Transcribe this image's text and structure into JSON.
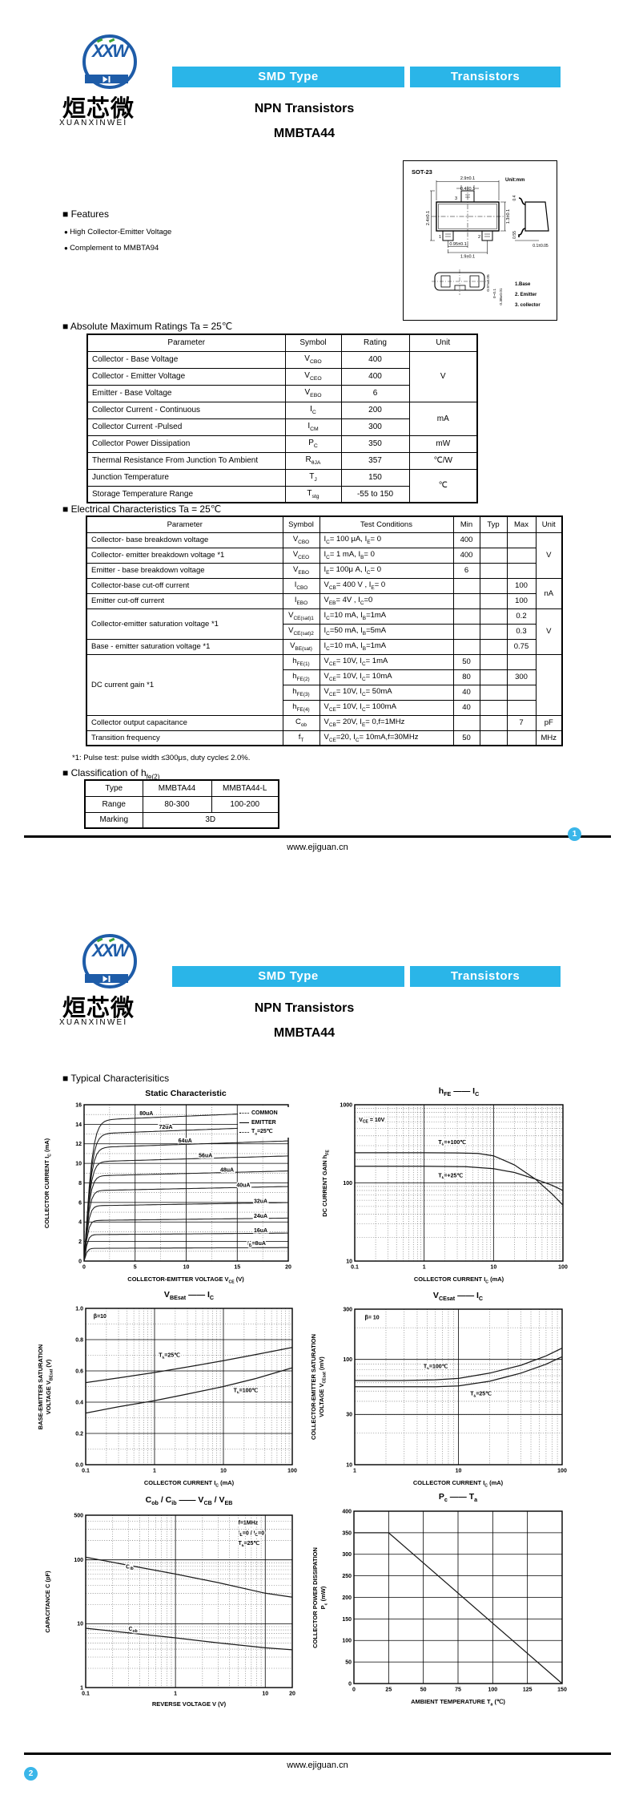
{
  "brand": {
    "monogram": "XXW",
    "cn": "烜芯微",
    "en": "XUANXINWEI"
  },
  "banner": {
    "left": "SMD Type",
    "right": "Transistors"
  },
  "title": {
    "line1": "NPN  Transistors",
    "line2": "MMBTA44"
  },
  "package": {
    "name": "SOT-23",
    "unit": "Unit:mm",
    "dims": [
      "2.9±0.1",
      "0.4±0.1",
      "2.4±0.1",
      "1.3±0.1",
      "0.95±0.1",
      "1.9±0.1",
      "0.4",
      "0.55",
      "0.1±0.05",
      "0.97±0.05",
      "0~0.1",
      "0.38±0.01"
    ],
    "pin_numbers": [
      "1",
      "2",
      "3"
    ],
    "pins": [
      "1.Base",
      "2. Emitter",
      "3. collector"
    ]
  },
  "features": {
    "heading": "Features",
    "items": [
      "High Collector-Emitter Voltage",
      "Complement to MMBTA94"
    ]
  },
  "abs_max": {
    "heading": "Absolute Maximum Ratings Ta = 25℃",
    "columns": [
      "Parameter",
      "Symbol",
      "Rating",
      "Unit"
    ],
    "rows": [
      {
        "p": "Collector - Base Voltage",
        "s": "V|CBO|",
        "r": "400",
        "u": "V",
        "us": 3
      },
      {
        "p": "Collector - Emitter Voltage",
        "s": "V|CEO|",
        "r": "400"
      },
      {
        "p": "Emitter - Base Voltage",
        "s": "V|EBO|",
        "r": "6"
      },
      {
        "p": "Collector Current  - Continuous",
        "s": "I|C|",
        "r": "200",
        "u": "mA",
        "us": 2
      },
      {
        "p": "Collector Current -Pulsed",
        "s": "I|CM|",
        "r": "300"
      },
      {
        "p": "Collector Power Dissipation",
        "s": "P|C|",
        "r": "350",
        "u": "mW",
        "us": 1
      },
      {
        "p": "Thermal Resistance From Junction To Ambient",
        "s": "R|θJA|",
        "r": "357",
        "u": "℃/W",
        "us": 1
      },
      {
        "p": "Junction Temperature",
        "s": "T|J|",
        "r": "150",
        "u": "℃",
        "us": 2
      },
      {
        "p": "Storage Temperature Range",
        "s": "T|stg|",
        "r": "-55 to 150"
      }
    ]
  },
  "electrical": {
    "heading": "Electrical Characteristics Ta = 25℃",
    "columns": [
      "Parameter",
      "Symbol",
      "Test Conditions",
      "Min",
      "Typ",
      "Max",
      "Unit"
    ],
    "rows": [
      {
        "p": "Collector- base breakdown voltage",
        "s": "V|CBO|",
        "c": "I|C|= 100 μA,   I|E|= 0",
        "min": "400",
        "u": "V",
        "us": 3
      },
      {
        "p": "Collector- emitter breakdown voltage    *1",
        "s": "V|CEO|",
        "c": "I|C|= 1 mA,   I|B|= 0",
        "min": "400"
      },
      {
        "p": "Emitter - base breakdown voltage",
        "s": "V|EBO|",
        "c": "I|E|= 100μ A,   I|C|= 0",
        "min": "6"
      },
      {
        "p": "Collector-base cut-off current",
        "s": "I|CBO|",
        "c": "V|CB|= 400 V , I|E|= 0",
        "max": "100",
        "u": "nA",
        "us": 2
      },
      {
        "p": "Emitter cut-off current",
        "s": "I|EBO|",
        "c": "V|EB|= 4V , I|C|=0",
        "max": "100"
      },
      {
        "p": "Collector-emitter saturation voltage  *1",
        "ps": 2,
        "s": "V|CE(sat)1|",
        "c": "I|C|=10 mA, I|B|=1mA",
        "max": "0.2",
        "u": "V",
        "us": 3
      },
      {
        "s": "V|CE(sat)2|",
        "c": "I|C|=50 mA, I|B|=5mA",
        "max": "0.3"
      },
      {
        "p": "Base - emitter saturation voltage   *1",
        "s": "V|BE(sat)|",
        "c": "I|C|=10 mA, I|B|=1mA",
        "max": "0.75"
      },
      {
        "p": "DC current gain   *1",
        "ps": 4,
        "s": "h|FE(1)|",
        "c": "V|CE|= 10V, I|C|= 1mA",
        "min": "50",
        "u": "",
        "us": 4
      },
      {
        "s": "h|FE(2)|",
        "c": "V|CE|= 10V, I|C|= 10mA",
        "min": "80",
        "max": "300"
      },
      {
        "s": "h|FE(3)|",
        "c": "V|CE|= 10V, I|C|= 50mA",
        "min": "40"
      },
      {
        "s": "h|FE(4)|",
        "c": "V|CE|= 10V, I|C|= 100mA",
        "min": "40"
      },
      {
        "p": "Collector output  capacitance",
        "s": "C|ob|",
        "c": "V|CB|= 20V, I|E|= 0,f=1MHz",
        "max": "7",
        "u": "pF",
        "us": 1
      },
      {
        "p": "Transition frequency",
        "s": "f|T|",
        "c": "V|CE|=20, I|C|= 10mA,f=30MHz",
        "min": "50",
        "u": "MHz",
        "us": 1
      }
    ]
  },
  "footnote": "*1: Pulse test: pulse width ≤300μs, duty cycle≤ 2.0%.",
  "classification": {
    "heading": "Classification of h|fe(2)|",
    "rows": [
      [
        "Type",
        "MMBTA44",
        "MMBTA44-L"
      ],
      [
        "Range",
        "80-300",
        "100-200"
      ],
      [
        "Marking",
        "3D"
      ]
    ]
  },
  "footer": {
    "url": "www.ejiguan.cn",
    "page1": "1",
    "page2": "2"
  },
  "page2_heading": "Typical  Characterisitics",
  "chart_data": [
    {
      "type": "line",
      "title": "Static Characteristic",
      "xlabel": "COLLECTOR-EMITTER VOLTAGE   V|CE|   (V)",
      "ylabel": "COLLECTOR CURRENT   I|C|   (mA)",
      "x": {
        "log": false,
        "min": 0,
        "max": 20,
        "ticks": [
          "0",
          "5",
          "10",
          "15",
          "20"
        ]
      },
      "y": {
        "log": false,
        "min": 0,
        "max": 16,
        "ticks": [
          "0",
          "2",
          "4",
          "6",
          "8",
          "10",
          "12",
          "14",
          "16"
        ]
      },
      "legend": [
        "COMMON",
        "EMITTER",
        "T|a|=25℃"
      ],
      "curves": [
        {
          "l": "80uA",
          "s": 14.4,
          "x": 6.1,
          "y": 15.1
        },
        {
          "l": "72uA",
          "s": 13.0,
          "x": 8.0,
          "y": 13.7
        },
        {
          "l": "64uA",
          "s": 11.6,
          "x": 9.9,
          "y": 12.3
        },
        {
          "l": "56uA",
          "s": 10.15,
          "x": 11.9,
          "y": 10.8
        },
        {
          "l": "48uA",
          "s": 8.7,
          "x": 14.0,
          "y": 9.3
        },
        {
          "l": "40uA",
          "s": 7.2,
          "x": 15.6,
          "y": 7.75
        },
        {
          "l": "32uA",
          "s": 5.65,
          "x": 17.3,
          "y": 6.1
        },
        {
          "l": "24uA",
          "s": 4.15,
          "x": 17.3,
          "y": 4.6
        },
        {
          "l": "16uA",
          "s": 2.7,
          "x": 17.3,
          "y": 3.1
        },
        {
          "l": "I|B|=8uA",
          "s": 1.3,
          "x": 16.9,
          "y": 1.8
        }
      ]
    },
    {
      "type": "line",
      "title": "h|FE|   ——   I|C|",
      "xlabel": "COLLECTOR CURRENT   I|C|   (mA)",
      "ylabel": "DC CURRENT GAIN   h|FE|",
      "x": {
        "log": true,
        "min": 0.1,
        "max": 100,
        "ticks": [
          "0.1",
          "1",
          "10",
          "100"
        ]
      },
      "y": {
        "log": true,
        "min": 10,
        "max": 1000,
        "ticks": [
          "10",
          "100",
          "1000"
        ]
      },
      "ann": [
        {
          "t": "V|CE| = 10V",
          "x": 0.115,
          "y": 640
        },
        {
          "t": "T|a|=+100℃",
          "x": 1.6,
          "y": 330
        },
        {
          "t": "T|a|=+25℃",
          "x": 1.6,
          "y": 124
        }
      ],
      "series": [
        {
          "name": "Ta=+100C",
          "pts": [
            [
              0.1,
              243
            ],
            [
              1,
              243
            ],
            [
              3,
              242
            ],
            [
              6,
              238
            ],
            [
              10,
              222
            ],
            [
              20,
              170
            ],
            [
              40,
              112
            ],
            [
              70,
              72
            ],
            [
              100,
              52
            ]
          ]
        },
        {
          "name": "Ta=+25C",
          "pts": [
            [
              0.1,
              163
            ],
            [
              1,
              163
            ],
            [
              4,
              161
            ],
            [
              10,
              152
            ],
            [
              20,
              136
            ],
            [
              40,
              112
            ],
            [
              70,
              93
            ],
            [
              100,
              80
            ]
          ]
        }
      ]
    },
    {
      "type": "line",
      "title": "V|BEsat|   ——   I|C|",
      "xlabel": "COLLECTOR CURRENT   I|C|   (mA)",
      "ylabel": "BASE-EMITTER SATURATION\nVOLTAGE   V|BEsat|   (V)",
      "x": {
        "log": true,
        "min": 0.1,
        "max": 100,
        "ticks": [
          "0.1",
          "1",
          "10",
          "100"
        ]
      },
      "y": {
        "log": false,
        "min": 0,
        "max": 1,
        "ticks": [
          "0.0",
          "0.2",
          "0.4",
          "0.6",
          "0.8",
          "1.0"
        ]
      },
      "ann": [
        {
          "t": "β=10",
          "x": 0.13,
          "y": 0.95
        },
        {
          "t": "T|a|=25℃",
          "x": 1.15,
          "y": 0.7
        },
        {
          "t": "T|a|=100℃",
          "x": 14,
          "y": 0.475
        }
      ],
      "series": [
        {
          "name": "Ta=25C",
          "pts": [
            [
              0.1,
              0.525
            ],
            [
              0.3,
              0.555
            ],
            [
              1,
              0.59
            ],
            [
              3,
              0.625
            ],
            [
              10,
              0.665
            ],
            [
              30,
              0.705
            ],
            [
              100,
              0.75
            ]
          ]
        },
        {
          "name": "Ta=100C",
          "pts": [
            [
              0.1,
              0.33
            ],
            [
              0.3,
              0.37
            ],
            [
              1,
              0.41
            ],
            [
              3,
              0.452
            ],
            [
              10,
              0.5
            ],
            [
              30,
              0.552
            ],
            [
              100,
              0.62
            ]
          ]
        }
      ]
    },
    {
      "type": "line",
      "title": "V|CEsat|   ——   I|C|",
      "xlabel": "COLLECTOR  CURRENT   I|C|   (mA)",
      "ylabel": "COLLECTOR-EMITTER SATURATION\nVOLTAGE   V|CEsat|   (mV)",
      "x": {
        "log": true,
        "min": 1,
        "max": 100,
        "ticks": [
          "1",
          "10",
          "100"
        ]
      },
      "y": {
        "log": true,
        "min": 10,
        "max": 300,
        "ticks": [
          "10",
          "30",
          "100",
          "300"
        ]
      },
      "ann": [
        {
          "t": "β= 10",
          "x": 1.25,
          "y": 250
        },
        {
          "t": "T|a|=100℃",
          "x": 4.6,
          "y": 86
        },
        {
          "t": "T|a|=25℃",
          "x": 13,
          "y": 47
        }
      ],
      "series": [
        {
          "name": "Ta=100C",
          "pts": [
            [
              1,
              63
            ],
            [
              3,
              63
            ],
            [
              6,
              64
            ],
            [
              10,
              66
            ],
            [
              20,
              74
            ],
            [
              40,
              88
            ],
            [
              70,
              108
            ],
            [
              100,
              128
            ]
          ]
        },
        {
          "name": "Ta=25C",
          "pts": [
            [
              1,
              55
            ],
            [
              3,
              55
            ],
            [
              6,
              55
            ],
            [
              10,
              56
            ],
            [
              20,
              62
            ],
            [
              40,
              74
            ],
            [
              70,
              90
            ],
            [
              100,
              106
            ]
          ]
        }
      ]
    },
    {
      "type": "line",
      "title": "C|ob| / C|ib|   ——   V|CB| / V|EB|",
      "xlabel": "REVERSE  VOLTAGE   V   (V)",
      "ylabel": "CAPACITANCE   C   (pF)",
      "x": {
        "log": true,
        "min": 0.1,
        "max": 20,
        "ticks": [
          "0.1",
          "1",
          "10",
          "20"
        ]
      },
      "y": {
        "log": true,
        "min": 1,
        "max": 500,
        "ticks": [
          "1",
          "10",
          "100",
          "500"
        ]
      },
      "ann": [
        {
          "t": "f=1MHz",
          "x": 5,
          "y": 380
        },
        {
          "t": "I|E|=0 / I|C|=0",
          "x": 5,
          "y": 262
        },
        {
          "t": "T|a|=25℃",
          "x": 5,
          "y": 182
        },
        {
          "t": "C|ib|",
          "x": 0.28,
          "y": 78
        },
        {
          "t": "C|ob|",
          "x": 0.3,
          "y": 8.2
        }
      ],
      "series": [
        {
          "name": "Cib",
          "pts": [
            [
              0.1,
              110
            ],
            [
              0.3,
              82
            ],
            [
              1,
              60
            ],
            [
              3,
              44
            ],
            [
              10,
              30
            ],
            [
              20,
              26
            ]
          ]
        },
        {
          "name": "Cob",
          "pts": [
            [
              0.1,
              8.5
            ],
            [
              0.3,
              7.2
            ],
            [
              1,
              6
            ],
            [
              3,
              5
            ],
            [
              10,
              4.2
            ],
            [
              20,
              3.9
            ]
          ]
        }
      ]
    },
    {
      "type": "line",
      "title": "P|c|   ——   T|a|",
      "xlabel": "AMBIENT  TEMPERATURE   T|a|   (℃)",
      "ylabel": "COLLECTOR POWER DISSIPATION\nP|c|   (mW)",
      "x": {
        "log": false,
        "min": 0,
        "max": 150,
        "ticks": [
          "0",
          "25",
          "50",
          "75",
          "100",
          "125",
          "150"
        ]
      },
      "y": {
        "log": false,
        "min": 0,
        "max": 400,
        "ticks": [
          "0",
          "50",
          "100",
          "150",
          "200",
          "250",
          "300",
          "350",
          "400"
        ]
      },
      "series": [
        {
          "name": "Pc",
          "pts": [
            [
              0,
              350
            ],
            [
              25,
              350
            ],
            [
              150,
              0
            ]
          ]
        }
      ]
    }
  ]
}
